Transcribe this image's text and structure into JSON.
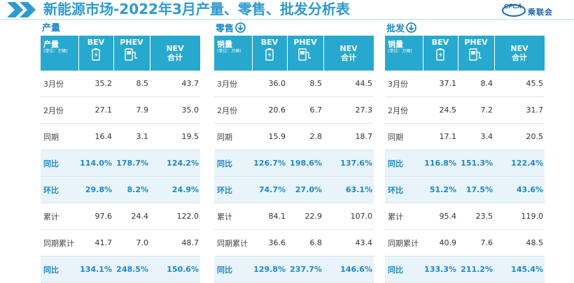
{
  "header": {
    "title": "新能源市场-2022年3月产量、零售、批发分析表",
    "logo_text": "乘联会",
    "logo_abbr": "CPCA"
  },
  "colors": {
    "accent": "#27a9cf",
    "title": "#2e9ad0",
    "highlight_row": "#e8f4f9"
  },
  "columns": {
    "bev": "BEV",
    "phev": "PHEV",
    "nev_line1": "NEV",
    "nev_line2": "合计",
    "unit": "(单位：万辆)"
  },
  "sections": [
    {
      "title": "产量",
      "icon": "",
      "corner_label": "产量",
      "rows": [
        {
          "label": "3月份",
          "bev": "35.2",
          "phev": "8.5",
          "nev": "43.7",
          "highlight": false
        },
        {
          "label": "2月份",
          "bev": "27.1",
          "phev": "7.9",
          "nev": "35.0",
          "highlight": false
        },
        {
          "label": "同期",
          "bev": "16.4",
          "phev": "3.1",
          "nev": "19.5",
          "highlight": false
        },
        {
          "label": "同比",
          "bev": "114.0%",
          "phev": "178.7%",
          "nev": "124.2%",
          "highlight": true
        },
        {
          "label": "环比",
          "bev": "29.8%",
          "phev": "8.2%",
          "nev": "24.9%",
          "highlight": true
        },
        {
          "label": "累计",
          "bev": "97.6",
          "phev": "24.4",
          "nev": "122.0",
          "highlight": false
        },
        {
          "label": "同期累计",
          "bev": "41.7",
          "phev": "7.0",
          "nev": "48.7",
          "highlight": false
        },
        {
          "label": "同比",
          "bev": "134.1%",
          "phev": "248.5%",
          "nev": "150.6%",
          "highlight": true
        }
      ]
    },
    {
      "title": "零售",
      "icon": "arrow-down-circle-icon",
      "corner_label": "销量",
      "rows": [
        {
          "label": "3月份",
          "bev": "36.0",
          "phev": "8.5",
          "nev": "44.5",
          "highlight": false
        },
        {
          "label": "2月份",
          "bev": "20.6",
          "phev": "6.7",
          "nev": "27.3",
          "highlight": false
        },
        {
          "label": "同期",
          "bev": "15.9",
          "phev": "2.8",
          "nev": "18.7",
          "highlight": false
        },
        {
          "label": "同比",
          "bev": "126.7%",
          "phev": "198.6%",
          "nev": "137.6%",
          "highlight": true
        },
        {
          "label": "环比",
          "bev": "74.7%",
          "phev": "27.0%",
          "nev": "63.1%",
          "highlight": true
        },
        {
          "label": "累计",
          "bev": "84.1",
          "phev": "22.9",
          "nev": "107.0",
          "highlight": false
        },
        {
          "label": "同期累计",
          "bev": "36.6",
          "phev": "6.8",
          "nev": "43.4",
          "highlight": false
        },
        {
          "label": "同比",
          "bev": "129.8%",
          "phev": "237.7%",
          "nev": "146.6%",
          "highlight": true
        }
      ]
    },
    {
      "title": "批发",
      "icon": "arrow-down-circle-icon",
      "corner_label": "销量",
      "rows": [
        {
          "label": "3月份",
          "bev": "37.1",
          "phev": "8.4",
          "nev": "45.5",
          "highlight": false
        },
        {
          "label": "2月份",
          "bev": "24.5",
          "phev": "7.2",
          "nev": "31.7",
          "highlight": false
        },
        {
          "label": "同期",
          "bev": "17.1",
          "phev": "3.4",
          "nev": "20.5",
          "highlight": false
        },
        {
          "label": "同比",
          "bev": "116.8%",
          "phev": "151.3%",
          "nev": "122.4%",
          "highlight": true
        },
        {
          "label": "环比",
          "bev": "51.2%",
          "phev": "17.5%",
          "nev": "43.6%",
          "highlight": true
        },
        {
          "label": "累计",
          "bev": "95.4",
          "phev": "23.5",
          "nev": "119.0",
          "highlight": false
        },
        {
          "label": "同期累计",
          "bev": "40.9",
          "phev": "7.6",
          "nev": "48.5",
          "highlight": false
        },
        {
          "label": "同比",
          "bev": "133.3%",
          "phev": "211.2%",
          "nev": "145.4%",
          "highlight": true
        }
      ]
    }
  ]
}
